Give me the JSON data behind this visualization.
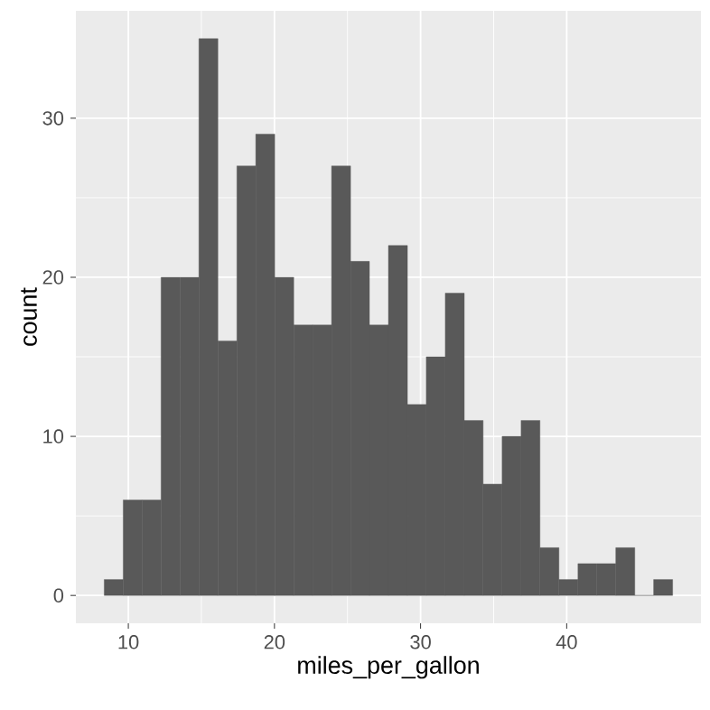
{
  "chart_data": {
    "type": "histogram",
    "xlabel": "miles_per_gallon",
    "ylabel": "count",
    "bins": [
      8.35,
      9.65,
      10.94,
      12.24,
      13.54,
      14.83,
      16.13,
      17.43,
      18.72,
      20.02,
      21.32,
      22.61,
      23.91,
      25.21,
      26.5,
      27.8,
      29.1,
      30.39,
      31.69,
      32.99,
      34.28,
      35.58,
      36.88,
      38.17,
      39.47,
      40.77,
      42.06,
      43.36,
      44.66,
      45.95,
      47.25
    ],
    "values": [
      1,
      6,
      6,
      20,
      20,
      35,
      16,
      27,
      29,
      20,
      17,
      17,
      27,
      21,
      17,
      22,
      12,
      15,
      19,
      11,
      7,
      10,
      11,
      3,
      1,
      2,
      2,
      3,
      0,
      1
    ],
    "color": "#595959",
    "xlim": [
      6.41,
      49.19
    ],
    "ylim": [
      -1.75,
      36.75
    ],
    "xticks": [
      10,
      20,
      30,
      40
    ],
    "yticks": [
      0,
      10,
      20,
      30
    ],
    "grid": true
  }
}
